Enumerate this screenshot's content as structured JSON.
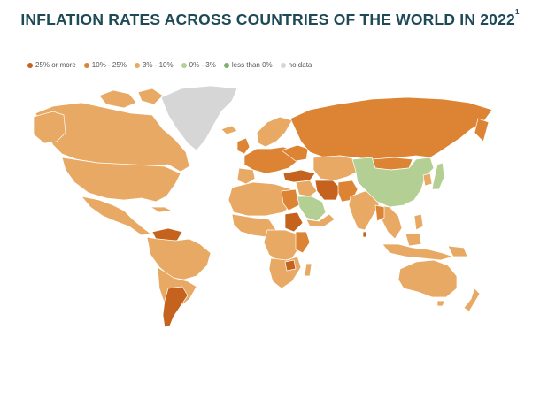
{
  "title": "INFLATION RATES ACROSS COUNTRIES OF THE WORLD IN 2022",
  "title_footnote": "1",
  "legend": [
    {
      "label": "25% or more",
      "color": "#c4621e"
    },
    {
      "label": "10% - 25%",
      "color": "#dc8434"
    },
    {
      "label": "3% - 10%",
      "color": "#e8a964"
    },
    {
      "label": "0% - 3%",
      "color": "#b3cf93"
    },
    {
      "label": "less than 0%",
      "color": "#7fb06b"
    },
    {
      "label": "no data",
      "color": "#d6d6d6"
    }
  ],
  "colors": {
    "title": "#1d4a56",
    "border": "#ffffff"
  }
}
